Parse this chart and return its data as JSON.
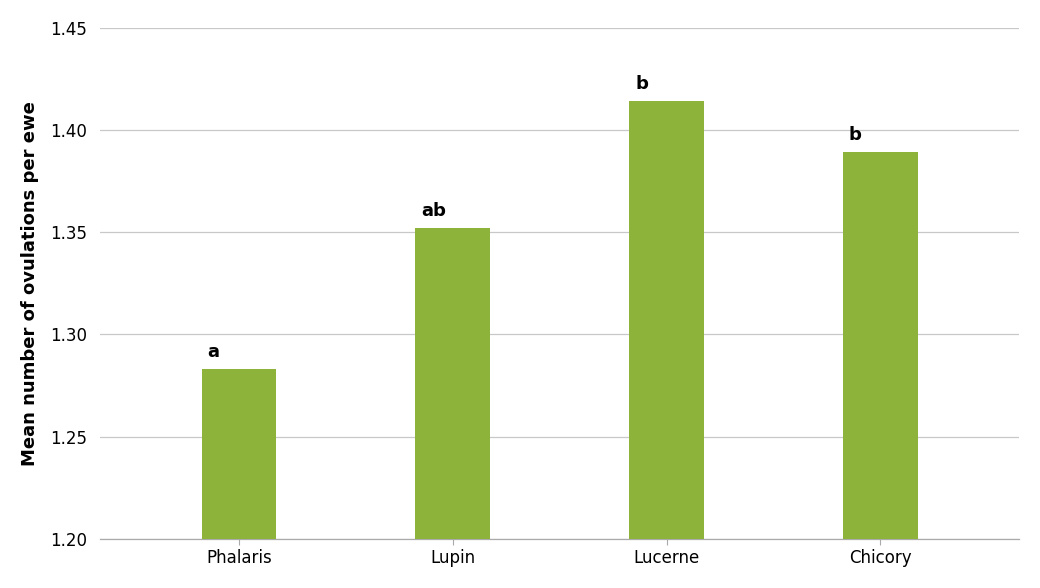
{
  "categories": [
    "Phalaris",
    "Lupin",
    "Lucerne",
    "Chicory"
  ],
  "values": [
    1.283,
    1.352,
    1.414,
    1.389
  ],
  "bar_color": "#8db33a",
  "bar_width": 0.35,
  "ylim": [
    1.2,
    1.45
  ],
  "yticks": [
    1.2,
    1.25,
    1.3,
    1.35,
    1.4,
    1.45
  ],
  "ylabel": "Mean number of ovulations per ewe",
  "ylabel_fontsize": 13,
  "ylabel_fontweight": "bold",
  "tick_fontsize": 12,
  "xlabel_fontsize": 12,
  "annotation_labels": [
    "a",
    "ab",
    "b",
    "b"
  ],
  "annotation_fontsize": 13,
  "annotation_fontweight": "bold",
  "grid_color": "#c8c8c8",
  "background_color": "#ffffff",
  "spine_color": "#aaaaaa"
}
